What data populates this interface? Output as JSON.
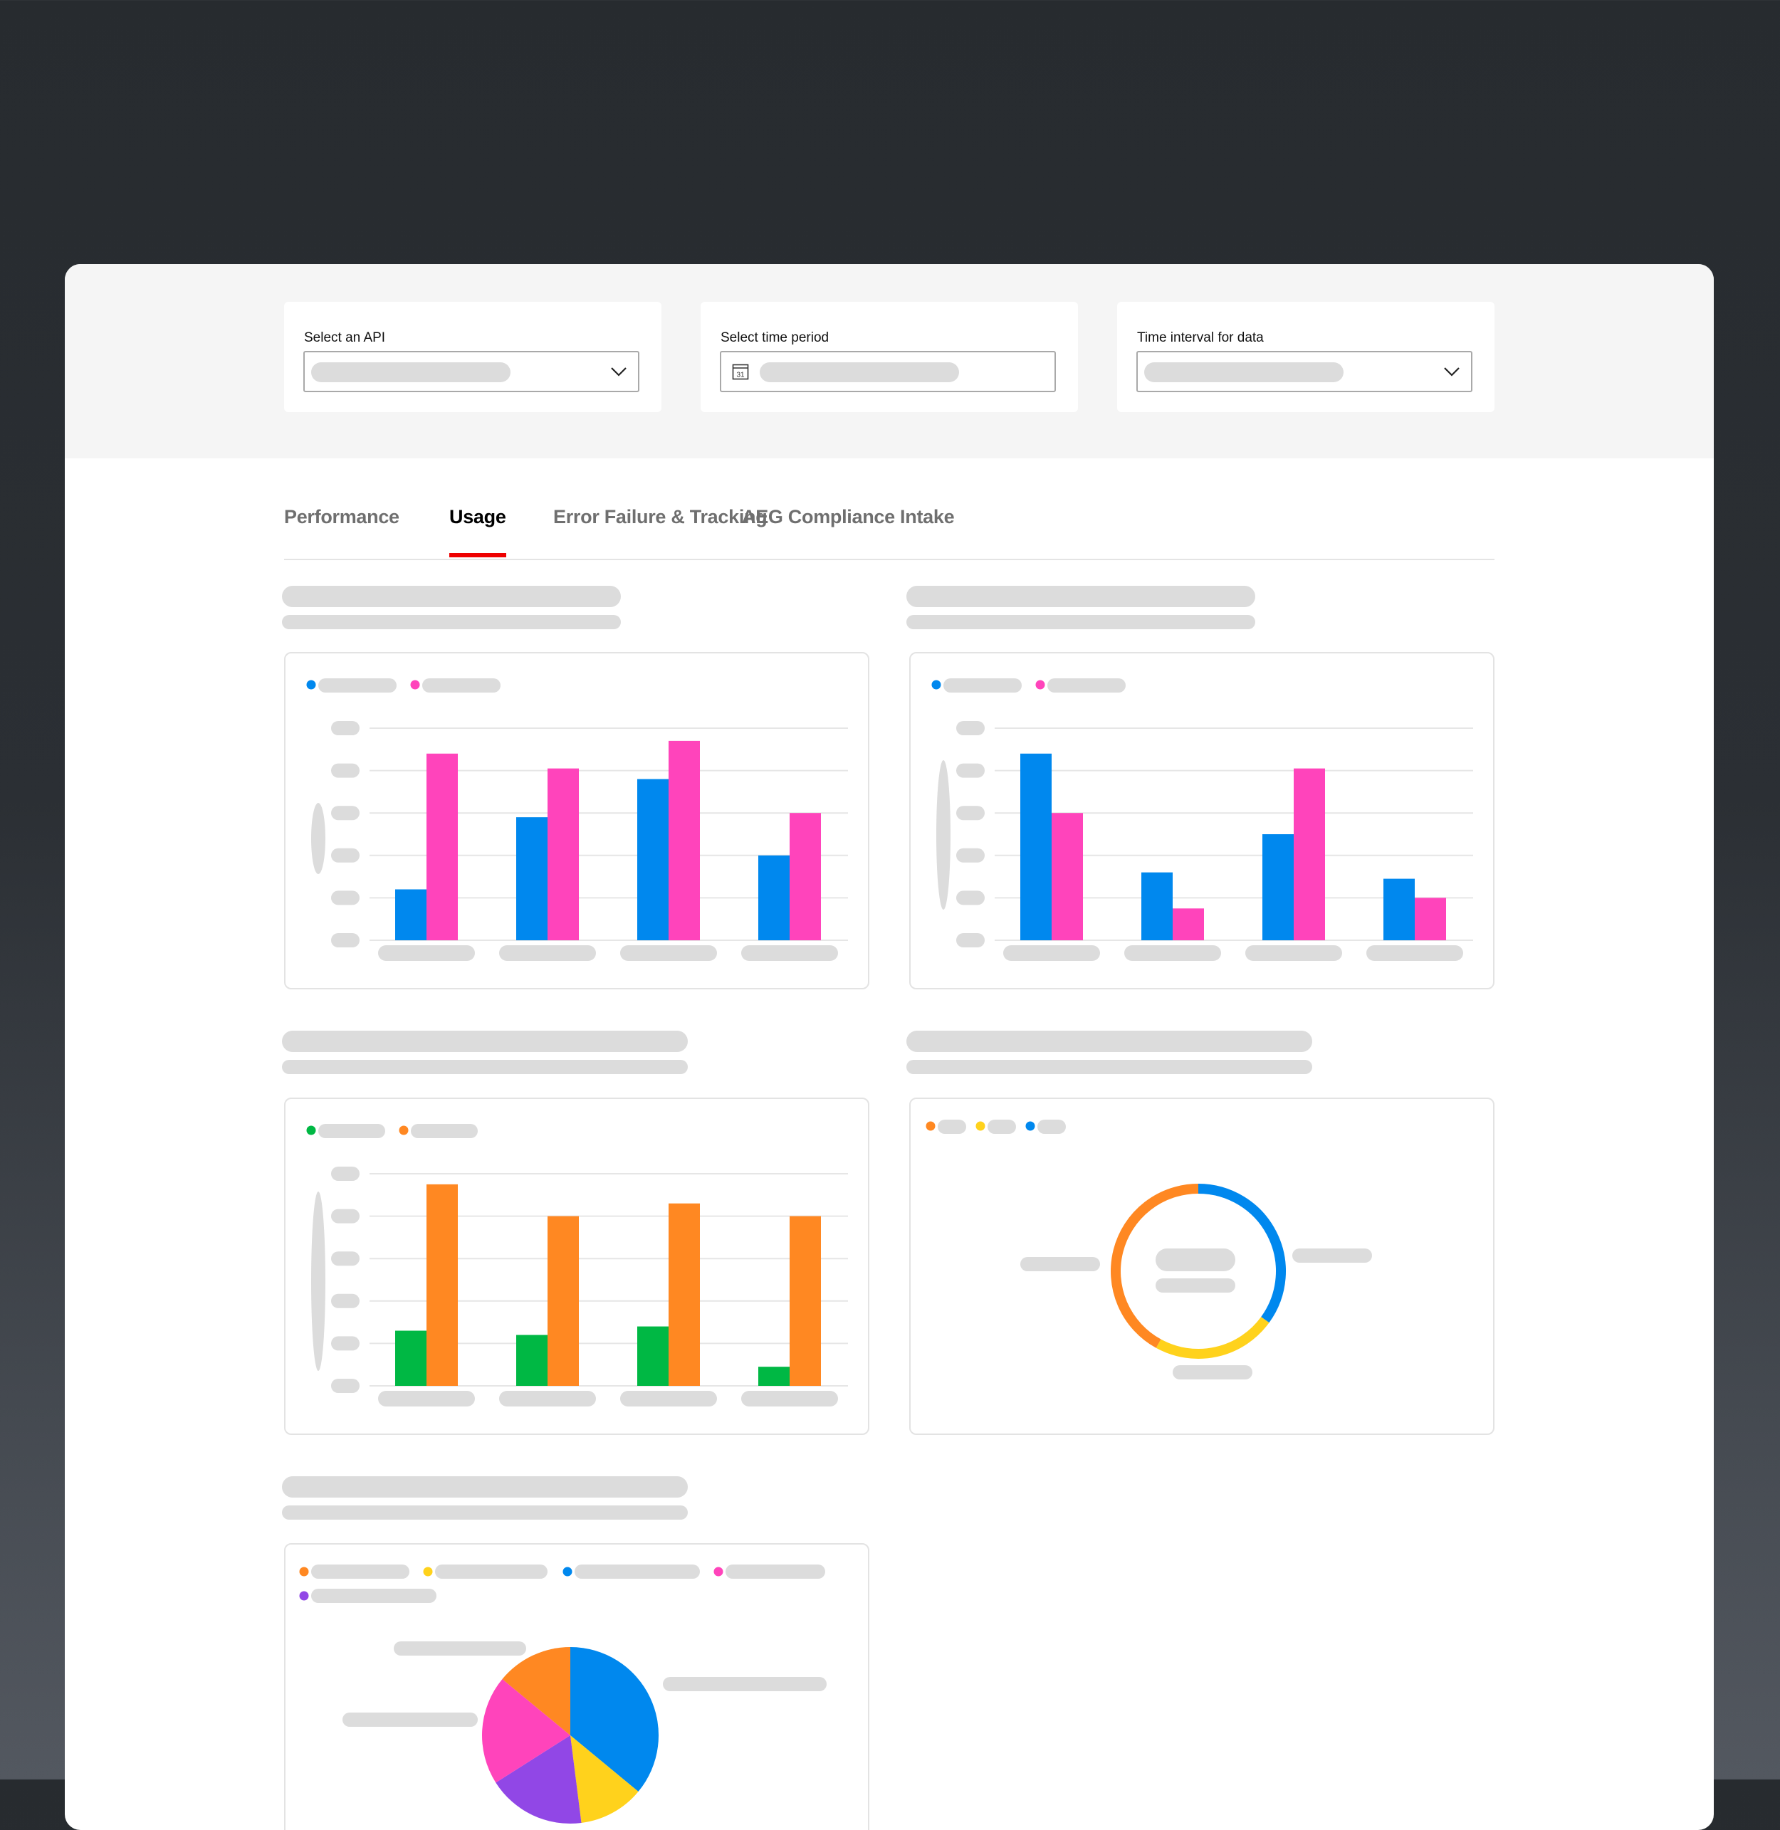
{
  "filters": {
    "api": {
      "label": "Select an API",
      "value": ""
    },
    "time_period": {
      "label": "Select time period",
      "value": "",
      "calendar_day": "31"
    },
    "interval": {
      "label": "Time interval for data",
      "value": ""
    }
  },
  "tabs": [
    {
      "label": "Performance",
      "active": false
    },
    {
      "label": "Usage",
      "active": true
    },
    {
      "label": "Error Failure & Tracking",
      "active": false
    },
    {
      "label": "AEG Compliance Intake",
      "active": false
    }
  ],
  "colors": {
    "accent": "#ee0000",
    "blue": "#0088ee",
    "pink": "#ff44bb",
    "green": "#00b844",
    "orange": "#ff8822",
    "yellow": "#ffd21c",
    "purple": "#9147e6",
    "skeleton": "#dcdcdc"
  },
  "chart_data": [
    {
      "type": "bar",
      "categories": [
        "",
        "",
        "",
        ""
      ],
      "series": [
        {
          "color": "#0088ee",
          "values": [
            24,
            58,
            76,
            40
          ]
        },
        {
          "color": "#ff44bb",
          "values": [
            88,
            81,
            94,
            60
          ]
        }
      ],
      "ylim": [
        0,
        100
      ],
      "grid": true,
      "legend": "top-left"
    },
    {
      "type": "bar",
      "categories": [
        "",
        "",
        "",
        ""
      ],
      "series": [
        {
          "color": "#0088ee",
          "values": [
            88,
            32,
            50,
            29
          ]
        },
        {
          "color": "#ff44bb",
          "values": [
            60,
            15,
            81,
            20
          ]
        }
      ],
      "ylim": [
        0,
        100
      ],
      "grid": true,
      "legend": "top-left"
    },
    {
      "type": "bar",
      "categories": [
        "",
        "",
        "",
        ""
      ],
      "series": [
        {
          "color": "#00b844",
          "values": [
            26,
            24,
            28,
            9
          ]
        },
        {
          "color": "#ff8822",
          "values": [
            95,
            80,
            86,
            80
          ]
        }
      ],
      "ylim": [
        0,
        100
      ],
      "grid": true,
      "legend": "top-left"
    },
    {
      "type": "pie",
      "donut": true,
      "slices": [
        {
          "color": "#0088ee",
          "value": 35
        },
        {
          "color": "#ffd21c",
          "value": 23
        },
        {
          "color": "#ff8822",
          "value": 42
        }
      ],
      "legend": "top-left"
    },
    {
      "type": "pie",
      "donut": false,
      "slices": [
        {
          "color": "#0088ee",
          "value": 36
        },
        {
          "color": "#ffd21c",
          "value": 12
        },
        {
          "color": "#9147e6",
          "value": 18
        },
        {
          "color": "#ff44bb",
          "value": 20
        },
        {
          "color": "#ff8822",
          "value": 14
        }
      ],
      "legend": "top-left"
    }
  ]
}
